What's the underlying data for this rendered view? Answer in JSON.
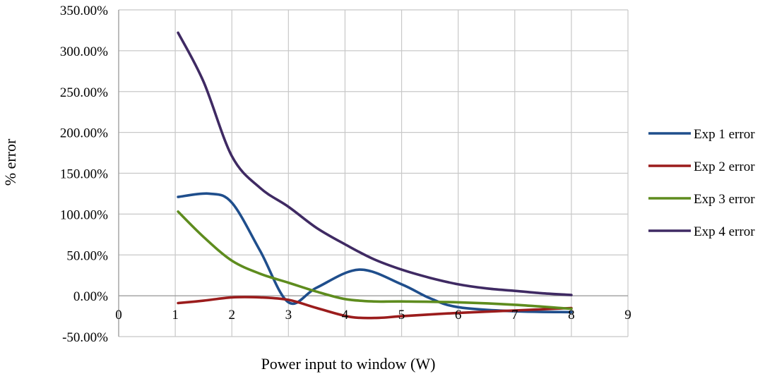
{
  "chart_data": {
    "type": "line",
    "title": "",
    "xlabel": "Power input to window (W)",
    "ylabel": "% error",
    "xlim": [
      0,
      9
    ],
    "ylim": [
      -50,
      350
    ],
    "x_ticks": [
      0,
      1,
      2,
      3,
      4,
      5,
      6,
      7,
      8,
      9
    ],
    "x_tick_labels": [
      "0",
      "1",
      "2",
      "3",
      "4",
      "5",
      "6",
      "7",
      "8",
      "9"
    ],
    "y_ticks": [
      -50,
      0,
      50,
      100,
      150,
      200,
      250,
      300,
      350
    ],
    "y_tick_labels": [
      "-50.00%",
      "0.00%",
      "50.00%",
      "100.00%",
      "150.00%",
      "200.00%",
      "250.00%",
      "300.00%",
      "350.00%"
    ],
    "grid": true,
    "legend_position": "right",
    "series": [
      {
        "name": "Exp 1 error",
        "color": "#1F4E8C",
        "x": [
          1.05,
          1.6,
          2.0,
          2.5,
          3.0,
          3.5,
          4.25,
          5.0,
          5.5,
          6.0,
          7.0,
          8.0
        ],
        "values": [
          121,
          125,
          114,
          55,
          -8,
          10,
          32,
          14,
          -3,
          -14,
          -19,
          -20
        ]
      },
      {
        "name": "Exp 2 error",
        "color": "#9B1C1C",
        "x": [
          1.05,
          1.5,
          2.0,
          2.5,
          3.0,
          3.5,
          4.1,
          4.6,
          5.0,
          6.0,
          7.0,
          8.0
        ],
        "values": [
          -9,
          -6,
          -2,
          -2,
          -5,
          -15,
          -26,
          -27,
          -25,
          -21,
          -18,
          -15
        ]
      },
      {
        "name": "Exp 3 error",
        "color": "#5E8C1E",
        "x": [
          1.05,
          1.5,
          2.0,
          2.5,
          3.0,
          3.5,
          4.0,
          4.5,
          5.0,
          6.0,
          7.0,
          8.0
        ],
        "values": [
          103,
          72,
          43,
          27,
          16,
          5,
          -4,
          -7,
          -7,
          -8,
          -11,
          -16
        ]
      },
      {
        "name": "Exp 4 error",
        "color": "#3F2A63",
        "x": [
          1.05,
          1.5,
          2.0,
          2.5,
          3.0,
          3.5,
          4.0,
          4.5,
          5.0,
          5.5,
          6.0,
          6.5,
          7.0,
          7.5,
          8.0
        ],
        "values": [
          322,
          262,
          171,
          132,
          109,
          83,
          63,
          45,
          32,
          22,
          14,
          9,
          6,
          3,
          1
        ]
      }
    ]
  }
}
